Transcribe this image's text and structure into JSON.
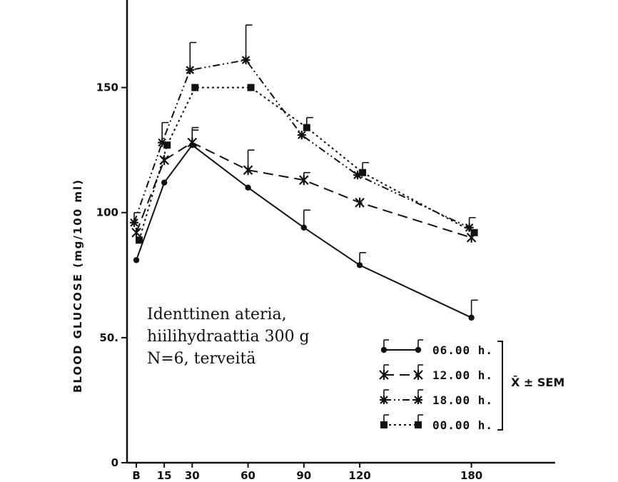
{
  "chart_data": {
    "type": "line",
    "title": "",
    "xlabel": "",
    "ylabel": "BLOOD GLUCOSE (mg/100 ml)",
    "ylim": [
      0,
      185
    ],
    "xlim": [
      -5,
      225
    ],
    "yticks": [
      0,
      50,
      100,
      150
    ],
    "ytick_labels": [
      "0",
      "50.",
      "100",
      "150"
    ],
    "xticks": [
      0,
      15,
      30,
      60,
      90,
      120,
      180
    ],
    "xtick_labels": [
      "B",
      "15",
      "30",
      "60",
      "90",
      "120",
      "180"
    ],
    "grid": false,
    "legend_position": "bottom-right",
    "legend_note": "X̄ ± SEM",
    "annotation": [
      "Identtinen ateria,",
      "hiilihydraattia 300 g",
      "N=6, terveitä"
    ],
    "series": [
      {
        "name": "06.00 h.",
        "marker": "circle",
        "dash": "solid",
        "x": [
          0,
          15,
          30,
          60,
          90,
          120,
          180
        ],
        "values": [
          81,
          112,
          127,
          110,
          94,
          79,
          58
        ],
        "err": [
          0,
          0,
          7,
          0,
          7,
          5,
          7
        ]
      },
      {
        "name": "12.00 h.",
        "marker": "star",
        "dash": "dashed",
        "x": [
          0,
          15,
          30,
          60,
          90,
          120,
          180
        ],
        "values": [
          92,
          121,
          128,
          117,
          113,
          104,
          90
        ],
        "err": [
          0,
          0,
          5,
          8,
          3,
          0,
          0
        ]
      },
      {
        "name": "18.00 h.",
        "marker": "cross",
        "dash": "dashdotdot",
        "x": [
          0,
          15,
          30,
          60,
          90,
          120,
          180
        ],
        "values": [
          96,
          128,
          157,
          161,
          131,
          115,
          94
        ],
        "err": [
          4,
          8,
          11,
          14,
          0,
          0,
          4
        ]
      },
      {
        "name": "00.00 h.",
        "marker": "square",
        "dash": "dotted",
        "x": [
          0,
          15,
          30,
          60,
          90,
          120,
          180
        ],
        "values": [
          89,
          127,
          150,
          150,
          134,
          116,
          92
        ],
        "err": [
          0,
          0,
          0,
          0,
          4,
          4,
          0
        ]
      }
    ]
  }
}
